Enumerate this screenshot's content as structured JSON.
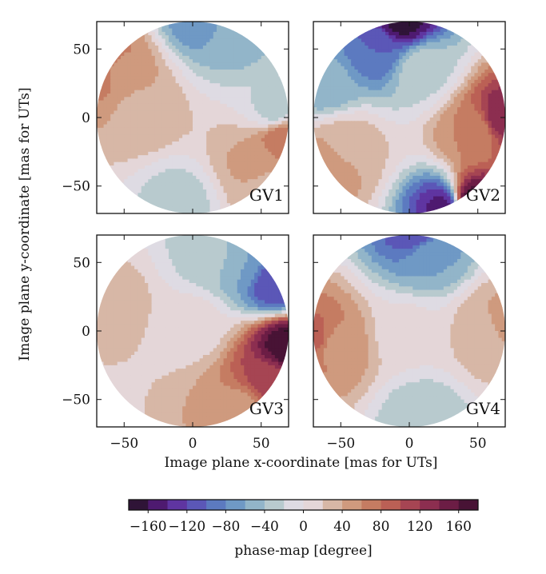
{
  "chart_data": {
    "type": "heatmap",
    "description_units": "mas",
    "xlabel": "Image plane x-coordinate [mas for UTs]",
    "ylabel": "Image plane y-coordinate [mas for UTs]",
    "xlim": [
      -70,
      70
    ],
    "ylim": [
      -70,
      70
    ],
    "xticks": [
      -50,
      0,
      50
    ],
    "yticks": [
      50,
      0,
      -50
    ],
    "xtick_labels": [
      "−50",
      "0",
      "50"
    ],
    "ytick_labels": [
      "50",
      "0",
      "−50"
    ],
    "pupil_radius": 70,
    "panels": [
      {
        "label": "GV1",
        "features": [
          {
            "x": 5,
            "y": 75,
            "value": -80
          },
          {
            "x": 30,
            "y": 60,
            "value": -50
          },
          {
            "x": 60,
            "y": 5,
            "value": -30
          },
          {
            "x": -68,
            "y": 40,
            "value": 90
          },
          {
            "x": -55,
            "y": 35,
            "value": 55
          },
          {
            "x": -38,
            "y": 5,
            "value": 35
          },
          {
            "x": 65,
            "y": -15,
            "value": 80
          },
          {
            "x": 45,
            "y": -35,
            "value": 45
          },
          {
            "x": -10,
            "y": -62,
            "value": -30
          },
          {
            "x": 55,
            "y": -55,
            "value": 25
          }
        ]
      },
      {
        "label": "GV2",
        "features": [
          {
            "x": -5,
            "y": 72,
            "value": -170
          },
          {
            "x": -25,
            "y": 50,
            "value": -100
          },
          {
            "x": -60,
            "y": 25,
            "value": -55
          },
          {
            "x": 10,
            "y": 35,
            "value": -25
          },
          {
            "x": 68,
            "y": 0,
            "value": 140
          },
          {
            "x": 48,
            "y": -10,
            "value": 60
          },
          {
            "x": -60,
            "y": -35,
            "value": 60
          },
          {
            "x": -45,
            "y": -20,
            "value": 30
          },
          {
            "x": 45,
            "y": -62,
            "value": 180
          },
          {
            "x": 25,
            "y": -65,
            "value": -150
          }
        ]
      },
      {
        "label": "GV3",
        "features": [
          {
            "x": 60,
            "y": 35,
            "value": -120
          },
          {
            "x": 35,
            "y": 50,
            "value": -60
          },
          {
            "x": 15,
            "y": 55,
            "value": -30
          },
          {
            "x": 68,
            "y": -12,
            "value": 175
          },
          {
            "x": 55,
            "y": -35,
            "value": 110
          },
          {
            "x": 35,
            "y": -58,
            "value": 50
          },
          {
            "x": -58,
            "y": 20,
            "value": 30
          },
          {
            "x": 0,
            "y": 5,
            "value": 10
          }
        ]
      },
      {
        "label": "GV4",
        "features": [
          {
            "x": 5,
            "y": 72,
            "value": -120
          },
          {
            "x": 15,
            "y": 55,
            "value": -60
          },
          {
            "x": -68,
            "y": -5,
            "value": 90
          },
          {
            "x": -55,
            "y": -10,
            "value": 50
          },
          {
            "x": 68,
            "y": 5,
            "value": 50
          },
          {
            "x": 58,
            "y": 0,
            "value": 30
          },
          {
            "x": 10,
            "y": -65,
            "value": -40
          },
          {
            "x": 0,
            "y": 0,
            "value": 5
          }
        ]
      }
    ],
    "colorbar": {
      "label": "phase-map [degree]",
      "range": [
        -180,
        180
      ],
      "levels": [
        -180,
        -160,
        -140,
        -120,
        -100,
        -80,
        -60,
        -40,
        -20,
        0,
        20,
        40,
        60,
        80,
        100,
        120,
        140,
        160,
        180
      ],
      "tick_values": [
        -160,
        -120,
        -80,
        -40,
        0,
        40,
        80,
        120,
        160
      ],
      "tick_labels": [
        "−160",
        "−120",
        "−80",
        "−40",
        "0",
        "40",
        "80",
        "120",
        "160"
      ],
      "colors": [
        "#2f1437",
        "#4e1a70",
        "#5f35a1",
        "#5b57b7",
        "#5c7ac0",
        "#6f99c5",
        "#92b5c9",
        "#b8cace",
        "#dedbe3",
        "#e4d6d8",
        "#d7b7a6",
        "#cf9a7e",
        "#c57c62",
        "#bb6055",
        "#a64553",
        "#8c2e50",
        "#6c1d45",
        "#481335"
      ]
    }
  }
}
